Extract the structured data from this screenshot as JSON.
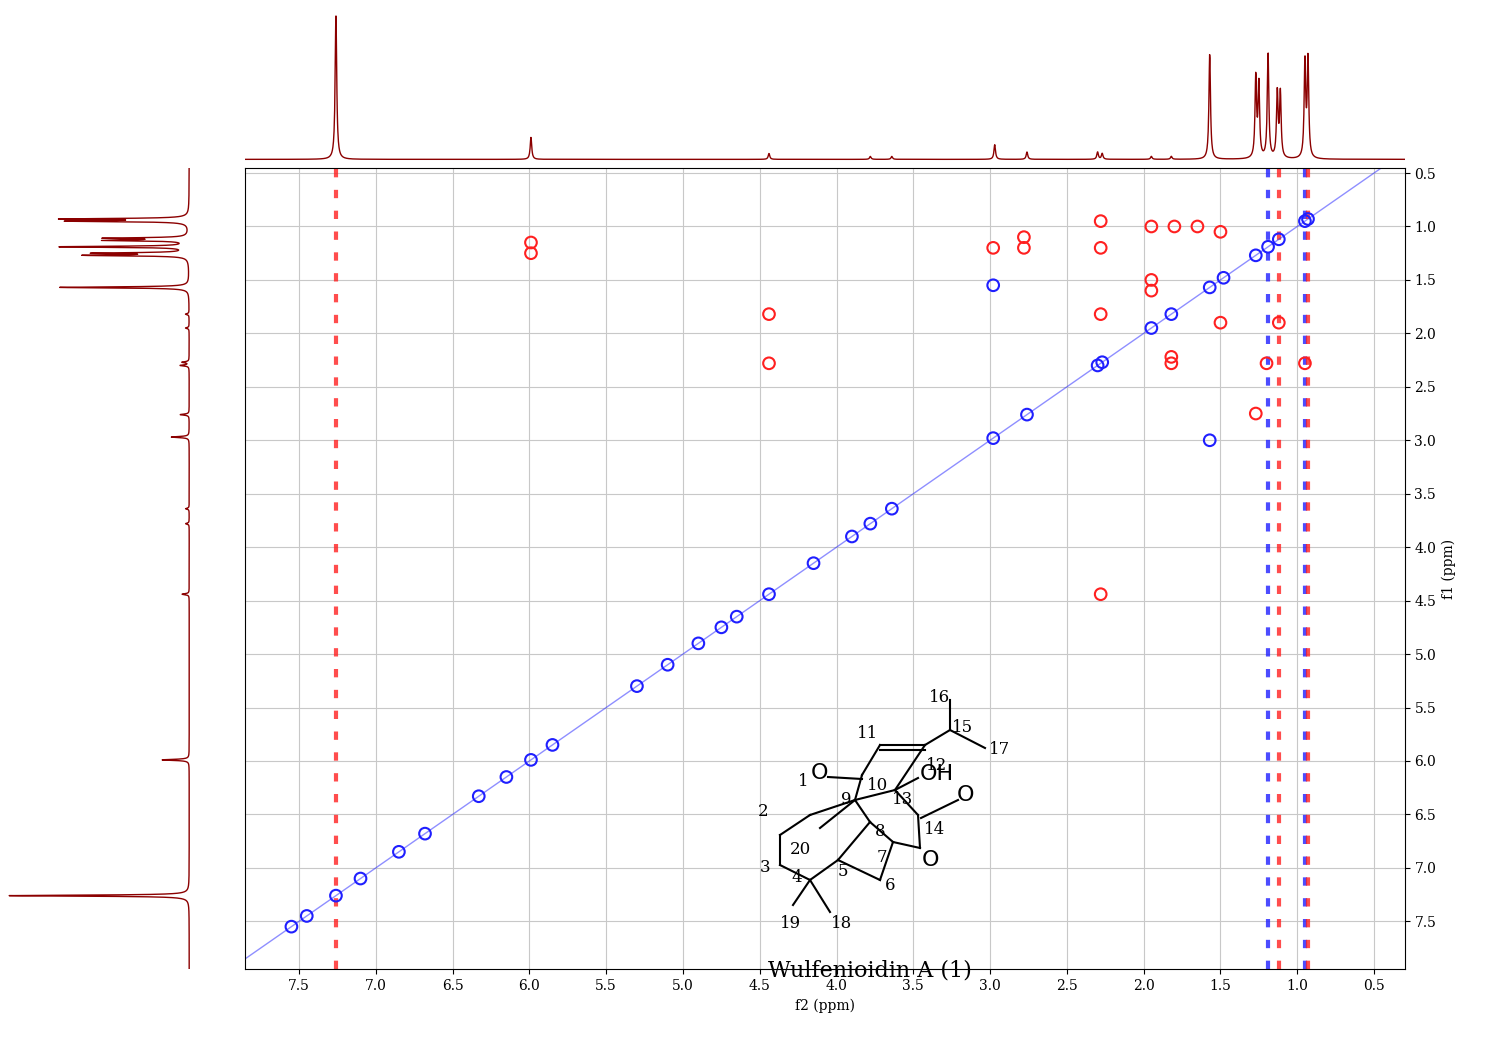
{
  "chart_data": {
    "type": "scatter",
    "x_label": "f2 (ppm)",
    "y_label": "f1 (ppm)",
    "xlim": [
      7.85,
      0.3
    ],
    "ylim": [
      7.95,
      0.45
    ],
    "xticks": [
      7.5,
      7.0,
      6.5,
      6.0,
      5.5,
      5.0,
      4.5,
      4.0,
      3.5,
      3.0,
      2.5,
      2.0,
      1.5,
      1.0,
      0.5
    ],
    "yticks": [
      0.5,
      1.0,
      1.5,
      2.0,
      2.5,
      3.0,
      3.5,
      4.0,
      4.5,
      5.0,
      5.5,
      6.0,
      6.5,
      7.0,
      7.5
    ],
    "grid": true,
    "marker": "o",
    "series": [
      {
        "color": "#1f1fff",
        "x": [
          7.26,
          5.99,
          4.44,
          3.78,
          3.64,
          2.98,
          2.76,
          2.3,
          2.27,
          1.95,
          1.82,
          1.57,
          1.48,
          1.27,
          1.19,
          1.12,
          0.95,
          0.93,
          2.98,
          1.57,
          7.55,
          7.45,
          7.1,
          6.85,
          6.68,
          6.33,
          6.15,
          5.85,
          5.3,
          5.1,
          4.9,
          4.75,
          4.65,
          4.15,
          3.9
        ],
        "y": [
          7.26,
          5.99,
          4.44,
          3.78,
          3.64,
          2.98,
          2.76,
          2.3,
          2.27,
          1.95,
          1.82,
          1.57,
          1.48,
          1.27,
          1.19,
          1.12,
          0.95,
          0.93,
          1.55,
          3.0,
          7.55,
          7.45,
          7.1,
          6.85,
          6.68,
          6.33,
          6.15,
          5.85,
          5.3,
          5.1,
          4.9,
          4.75,
          4.65,
          4.15,
          3.9
        ]
      },
      {
        "color": "#ff2020",
        "x": [
          2.28,
          2.28,
          2.78,
          2.78,
          2.98,
          4.44,
          4.44,
          2.28,
          2.28,
          1.95,
          1.95,
          1.82,
          1.82,
          1.5,
          1.27,
          5.99,
          5.99,
          1.95,
          1.65,
          1.8,
          1.5,
          1.2,
          1.12,
          0.95
        ],
        "y": [
          0.95,
          1.2,
          1.1,
          1.2,
          1.2,
          1.82,
          2.28,
          4.44,
          1.82,
          1.5,
          1.6,
          2.28,
          2.22,
          1.9,
          2.75,
          1.15,
          1.25,
          1.0,
          1.0,
          1.0,
          1.05,
          2.28,
          1.9,
          2.28
        ]
      }
    ],
    "noise_columns": [
      {
        "x": 7.26,
        "color": "#ff2020"
      },
      {
        "x": 1.19,
        "color": "#1f1fff"
      },
      {
        "x": 1.12,
        "color": "#ff2020"
      },
      {
        "x": 0.95,
        "color": "#1f1fff"
      },
      {
        "x": 0.93,
        "color": "#ff2020"
      }
    ],
    "projection": {
      "color": "#8b0000",
      "ppm": [
        7.26,
        5.99,
        4.44,
        3.78,
        3.64,
        2.97,
        2.76,
        2.3,
        2.27,
        1.95,
        1.82,
        1.57,
        1.27,
        1.25,
        1.19,
        1.13,
        1.11,
        0.95,
        0.93
      ],
      "heights": [
        1.0,
        0.15,
        0.04,
        0.02,
        0.02,
        0.1,
        0.05,
        0.05,
        0.04,
        0.02,
        0.02,
        0.72,
        0.55,
        0.5,
        0.72,
        0.45,
        0.44,
        0.65,
        0.67
      ]
    },
    "structure": {
      "name": "Wulfenioidin A (1)",
      "labels": [
        "16",
        "15",
        "17",
        "11",
        "12",
        "O",
        "10",
        "13",
        "OH",
        "O",
        "1",
        "9",
        "8",
        "14",
        "2",
        "20",
        "7",
        "O",
        "6",
        "3",
        "4",
        "5",
        "19",
        "18"
      ]
    }
  }
}
